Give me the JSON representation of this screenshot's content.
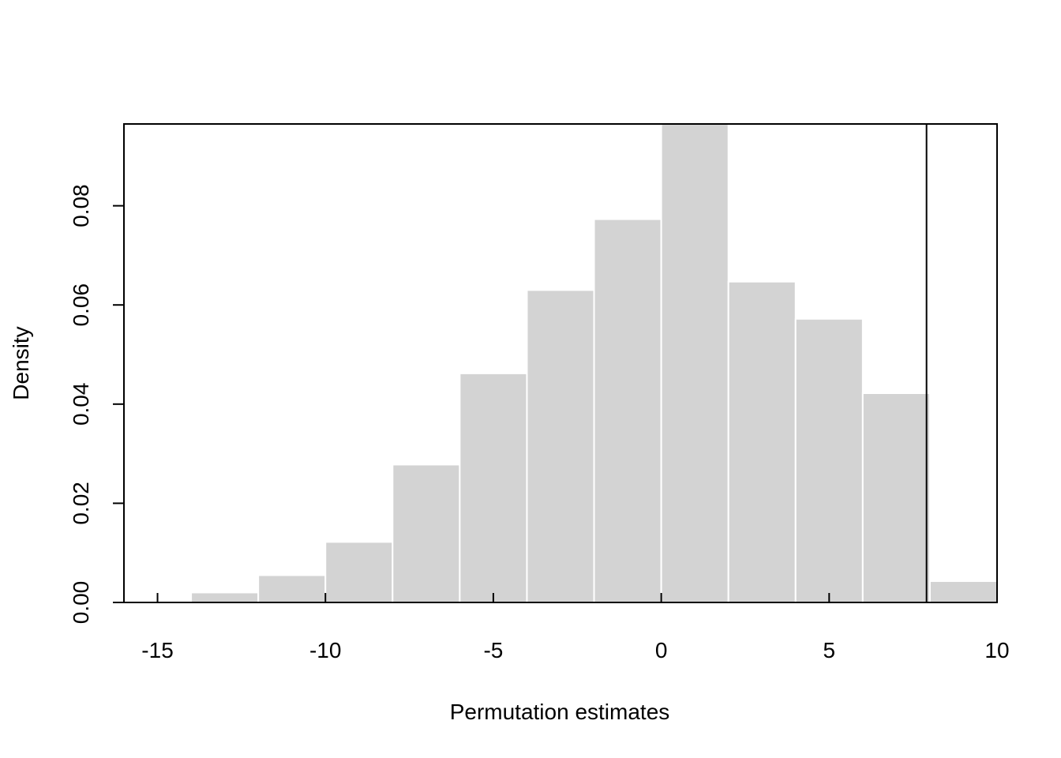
{
  "chart_data": {
    "type": "bar",
    "subtype": "histogram",
    "title": "",
    "xlabel": "Permutation estimates",
    "ylabel": "Density",
    "xlim": [
      -16,
      10
    ],
    "ylim": [
      0,
      0.0965
    ],
    "bin_width": 2,
    "bins": [
      {
        "x0": -14,
        "x1": -12,
        "density": 0.002
      },
      {
        "x0": -12,
        "x1": -10,
        "density": 0.0055
      },
      {
        "x0": -10,
        "x1": -8,
        "density": 0.0122
      },
      {
        "x0": -8,
        "x1": -6,
        "density": 0.0278
      },
      {
        "x0": -6,
        "x1": -4,
        "density": 0.0462
      },
      {
        "x0": -4,
        "x1": -2,
        "density": 0.063
      },
      {
        "x0": -2,
        "x1": 0,
        "density": 0.0773
      },
      {
        "x0": 0,
        "x1": 2,
        "density": 0.097
      },
      {
        "x0": 2,
        "x1": 4,
        "density": 0.0647
      },
      {
        "x0": 4,
        "x1": 6,
        "density": 0.0572
      },
      {
        "x0": 6,
        "x1": 8,
        "density": 0.0422
      },
      {
        "x0": 8,
        "x1": 10,
        "density": 0.0043
      }
    ],
    "x_ticks": [
      {
        "value": -15,
        "label": "-15"
      },
      {
        "value": -10,
        "label": "-10"
      },
      {
        "value": -5,
        "label": "-5"
      },
      {
        "value": 0,
        "label": "0"
      },
      {
        "value": 5,
        "label": "5"
      },
      {
        "value": 10,
        "label": "10"
      }
    ],
    "y_ticks": [
      {
        "value": 0,
        "label": "0.00"
      },
      {
        "value": 0.02,
        "label": "0.02"
      },
      {
        "value": 0.04,
        "label": "0.04"
      },
      {
        "value": 0.06,
        "label": "0.06"
      },
      {
        "value": 0.08,
        "label": "0.08"
      }
    ],
    "reference_line_x": 7.9,
    "grid": false,
    "colors": {
      "bar_fill": "#d3d3d3",
      "bar_border": "#ffffff",
      "axes": "#000000"
    }
  }
}
